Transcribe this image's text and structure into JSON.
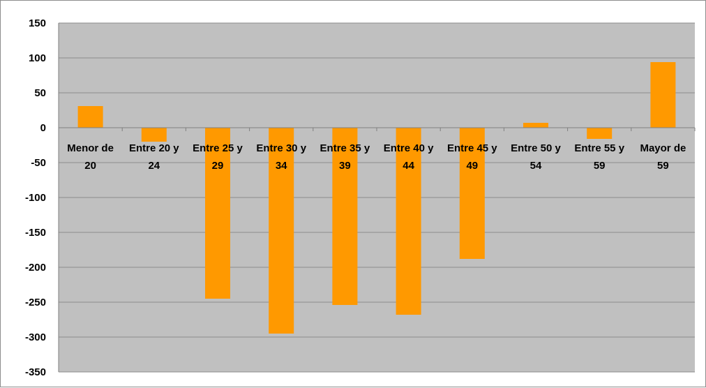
{
  "chart_data": {
    "type": "bar",
    "title": "",
    "xlabel": "",
    "ylabel": "",
    "categories": [
      [
        "Menor de",
        "20"
      ],
      [
        "Entre 20 y",
        "24"
      ],
      [
        "Entre 25 y",
        "29"
      ],
      [
        "Entre 30 y",
        "34"
      ],
      [
        "Entre 35 y",
        "39"
      ],
      [
        "Entre 40 y",
        "44"
      ],
      [
        "Entre 45 y",
        "49"
      ],
      [
        "Entre 50 y",
        "54"
      ],
      [
        "Entre 55 y",
        "59"
      ],
      [
        "Mayor de",
        "59"
      ]
    ],
    "values": [
      31,
      -20,
      -245,
      -295,
      -254,
      -268,
      -188,
      7,
      -16,
      94
    ],
    "ylim": [
      -350,
      150
    ],
    "yticks": [
      150,
      100,
      50,
      0,
      -50,
      -100,
      -150,
      -200,
      -250,
      -300,
      -350
    ],
    "grid": true,
    "legend": "none",
    "colors": {
      "bar": "#ff9900",
      "plot_background": "#c0c0c0",
      "gridline": "#8c8c8c"
    }
  }
}
